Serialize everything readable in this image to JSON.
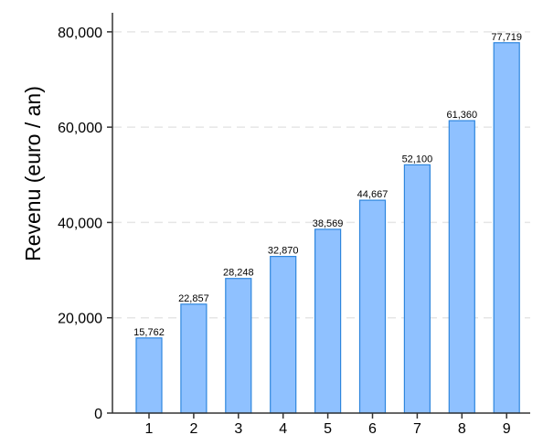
{
  "chart_data": {
    "type": "bar",
    "categories": [
      "1",
      "2",
      "3",
      "4",
      "5",
      "6",
      "7",
      "8",
      "9"
    ],
    "values": [
      15762,
      22857,
      28248,
      32870,
      38569,
      44667,
      52100,
      61360,
      77719
    ],
    "data_labels": [
      "15,762",
      "22,857",
      "28,248",
      "32,870",
      "38,569",
      "44,667",
      "52,100",
      "61,360",
      "77,719"
    ],
    "title": "",
    "xlabel": "",
    "ylabel": "Revenu (euro / an)",
    "ylim": [
      0,
      84000
    ],
    "yticks": [
      0,
      20000,
      40000,
      60000,
      80000
    ],
    "ytick_labels": [
      "0",
      "20,000",
      "40,000",
      "60,000",
      "80,000"
    ],
    "grid": true,
    "colors": {
      "bar_fill": "#8fc1ff",
      "bar_stroke": "#2e86de",
      "grid": "#e6e6e6",
      "axis": "#333333"
    }
  }
}
